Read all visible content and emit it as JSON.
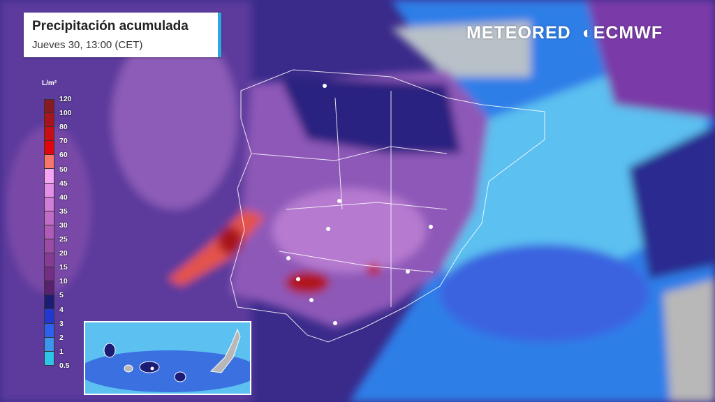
{
  "header": {
    "title": "Precipitación acumulada",
    "subtitle": "Jueves 30, 13:00 (CET)"
  },
  "branding": {
    "logo_text": "METEORED",
    "partner_text": "ECMWF"
  },
  "legend": {
    "unit": "L/m²",
    "labels": [
      "120",
      "100",
      "80",
      "70",
      "60",
      "50",
      "45",
      "40",
      "35",
      "30",
      "25",
      "20",
      "15",
      "10",
      "5",
      "4",
      "3",
      "2",
      "1",
      "0.5"
    ],
    "colors": [
      "#8a1a22",
      "#a8141c",
      "#c80e14",
      "#e2060c",
      "#f8766c",
      "#f6a4f4",
      "#e490ea",
      "#d27ed8",
      "#c06cc8",
      "#ae5cb8",
      "#9a4ca6",
      "#863c96",
      "#742e86",
      "#5a2070",
      "#1c1c74",
      "#2238d0",
      "#2e62ee",
      "#3c96f0",
      "#2ec4ec",
      "#6ee6f8"
    ]
  },
  "map": {
    "region": "Península Ibérica",
    "colors": {
      "land_gray": "#b8b8b8",
      "borders": "#ffffff",
      "sea_light": "#7fd6f0"
    }
  }
}
